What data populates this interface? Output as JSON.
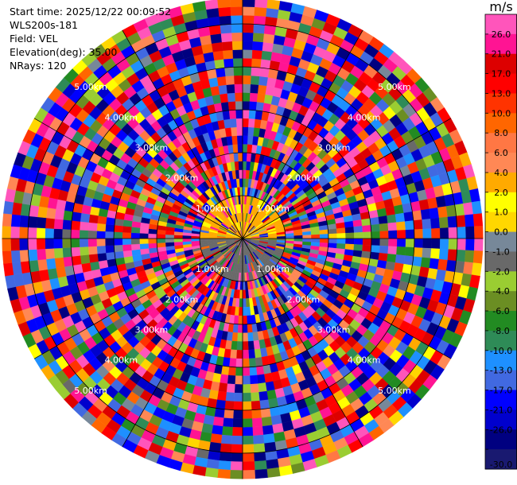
{
  "header": {
    "start_time": "Start time: 2025/12/22 00:09:52",
    "instrument": "WLS200s-181",
    "field": "Field: VEL",
    "elevation": "Elevation(deg): 35.00",
    "nrays": "NRays: 120"
  },
  "chart_data": {
    "type": "heatmap",
    "projection": "polar-ppi",
    "field": "VEL",
    "elevation_deg": 35.0,
    "n_rays": 120,
    "range_rings_km": [
      1,
      2,
      3,
      4,
      5
    ],
    "ring_labels": [
      "1.00km",
      "2.00km",
      "3.00km",
      "4.00km",
      "5.00km"
    ],
    "max_range_km": 5.6,
    "colorbar": {
      "title": "m/s",
      "tick_labels": [
        "26.0",
        "21.0",
        "17.0",
        "13.0",
        "10.0",
        "8.0",
        "6.0",
        "4.0",
        "2.0",
        "1.0",
        "0.0",
        "-1.0",
        "-2.0",
        "-4.0",
        "-6.0",
        "-8.0",
        "-10.0",
        "-13.0",
        "-17.0",
        "-21.0",
        "-26.0",
        "-30.0"
      ],
      "bounds": [
        30,
        26,
        21,
        17,
        13,
        10,
        8,
        6,
        4,
        2,
        1,
        0,
        -1,
        -2,
        -4,
        -6,
        -8,
        -10,
        -13,
        -17,
        -21,
        -26,
        -30
      ],
      "colors": [
        "#ff55bb",
        "#ff1493",
        "#dd0000",
        "#ff0000",
        "#ff3300",
        "#ff6600",
        "#ff7744",
        "#ff8855",
        "#ffaa00",
        "#ffff00",
        "#ffd700",
        "#778899",
        "#696969",
        "#9acd32",
        "#6b8e23",
        "#228b22",
        "#2e8b57",
        "#1e90ff",
        "#4169e1",
        "#0000ff",
        "#0000cd",
        "#000080",
        "#191970"
      ]
    }
  }
}
